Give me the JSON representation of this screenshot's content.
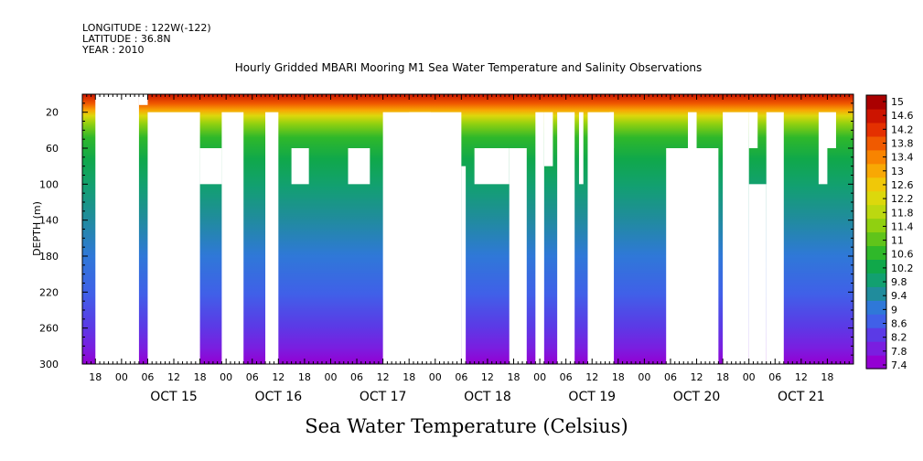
{
  "header": {
    "longitude": "LONGITUDE : 122W(-122)",
    "latitude": "LATITUDE : 36.8N",
    "year": "YEAR : 2010"
  },
  "chart_data": {
    "type": "heatmap",
    "title": "Hourly Gridded MBARI Mooring M1 Sea Water Temperature and Salinity Observations",
    "xlabel": "Sea Water Temperature (Celsius)",
    "ylabel": "DEPTH (m)",
    "x_unit": "hours since OCT 14 18:00",
    "xlim": [
      -3,
      174
    ],
    "ylim": [
      300,
      0
    ],
    "y_ticks": [
      20,
      60,
      100,
      140,
      180,
      220,
      260,
      300
    ],
    "hour_tick_labels": [
      "00",
      "06",
      "12",
      "18"
    ],
    "day_labels": [
      "OCT 15",
      "OCT 16",
      "OCT 17",
      "OCT 18",
      "OCT 19",
      "OCT 20",
      "OCT 21"
    ],
    "colorbar": {
      "min": 7.4,
      "max": 15.2,
      "labels": [
        "15",
        "14.6",
        "14.2",
        "13.8",
        "13.4",
        "13",
        "12.6",
        "12.2",
        "11.8",
        "11.4",
        "11",
        "10.6",
        "10.2",
        "9.8",
        "9.4",
        "9",
        "8.6",
        "8.2",
        "7.8",
        "7.4"
      ],
      "colors": [
        "#9400d3",
        "#7a1ee0",
        "#5b3ae6",
        "#4060e8",
        "#2f78d8",
        "#208c9c",
        "#12a070",
        "#10a84a",
        "#2fb82a",
        "#60c41a",
        "#90d010",
        "#bcd810",
        "#dcd80c",
        "#f0c808",
        "#f8a804",
        "#f88400",
        "#f05a00",
        "#e43000",
        "#cc1400",
        "#aa0000"
      ]
    },
    "gaps": [
      [
        0,
        10,
        0,
        300
      ],
      [
        10,
        12,
        0,
        12
      ],
      [
        12,
        24,
        20,
        300
      ],
      [
        24,
        29,
        60,
        100
      ],
      [
        29,
        34,
        20,
        300
      ],
      [
        39,
        42,
        20,
        300
      ],
      [
        45,
        49,
        60,
        100
      ],
      [
        58,
        63,
        60,
        100
      ],
      [
        66,
        84,
        20,
        300
      ],
      [
        72,
        77,
        20,
        60
      ],
      [
        84,
        85,
        80,
        300
      ],
      [
        87,
        95,
        60,
        100
      ],
      [
        95,
        99,
        60,
        300
      ],
      [
        101,
        103,
        20,
        300
      ],
      [
        103,
        105,
        20,
        80
      ],
      [
        106,
        110,
        20,
        300
      ],
      [
        111,
        112,
        20,
        100
      ],
      [
        113,
        119,
        20,
        300
      ],
      [
        118,
        119,
        20,
        60
      ],
      [
        131,
        143,
        60,
        300
      ],
      [
        136,
        138,
        20,
        60
      ],
      [
        135,
        137,
        60,
        100
      ],
      [
        144,
        150,
        20,
        300
      ],
      [
        150,
        152,
        20,
        60
      ],
      [
        150,
        154,
        100,
        300
      ],
      [
        154,
        158,
        20,
        300
      ],
      [
        166,
        170,
        20,
        60
      ],
      [
        166,
        168,
        60,
        100
      ],
      [
        174,
        176,
        20,
        60
      ],
      [
        178,
        182,
        20,
        300
      ],
      [
        183,
        184,
        60,
        300
      ],
      [
        186,
        188,
        20,
        60
      ],
      [
        190,
        192,
        20,
        60
      ],
      [
        193,
        195,
        20,
        300
      ],
      [
        198,
        200,
        20,
        300
      ]
    ]
  }
}
